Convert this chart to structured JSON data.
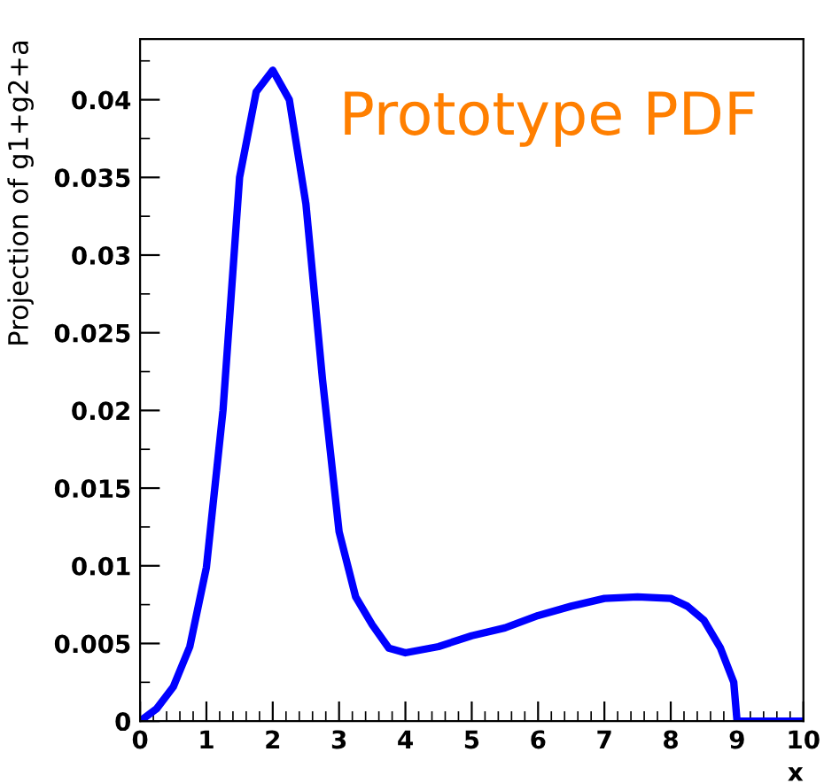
{
  "chart_data": {
    "type": "line",
    "title": "Prototype PDF",
    "xlabel": "x",
    "ylabel": "Projection of g1+g2+a",
    "x": [
      0,
      0.25,
      0.5,
      0.75,
      1,
      1.25,
      1.5,
      1.75,
      2,
      2.25,
      2.5,
      2.75,
      3,
      3.25,
      3.5,
      3.75,
      4,
      4.5,
      5,
      5.5,
      6,
      6.5,
      7,
      7.5,
      8,
      8.25,
      8.5,
      8.75,
      8.95,
      9,
      9.5,
      10
    ],
    "series": [
      {
        "color": "#0000ff",
        "values": [
          0,
          0.0008,
          0.0022,
          0.0048,
          0.0099,
          0.02,
          0.035,
          0.0405,
          0.0419,
          0.04,
          0.0333,
          0.022,
          0.0122,
          0.008,
          0.0062,
          0.0047,
          0.0044,
          0.0048,
          0.0055,
          0.006,
          0.0068,
          0.0074,
          0.0079,
          0.008,
          0.0079,
          0.0074,
          0.0065,
          0.0047,
          0.0025,
          0,
          0,
          0
        ]
      }
    ],
    "xlim": [
      0,
      10
    ],
    "ylim": [
      0,
      0.0439
    ],
    "xticks": [
      0,
      1,
      2,
      3,
      4,
      5,
      6,
      7,
      8,
      9,
      10
    ],
    "yticks": [
      0,
      0.005,
      0.01,
      0.015,
      0.02,
      0.025,
      0.03,
      0.035,
      0.04
    ],
    "grid": false,
    "marker": "none",
    "line_style": "solid"
  }
}
